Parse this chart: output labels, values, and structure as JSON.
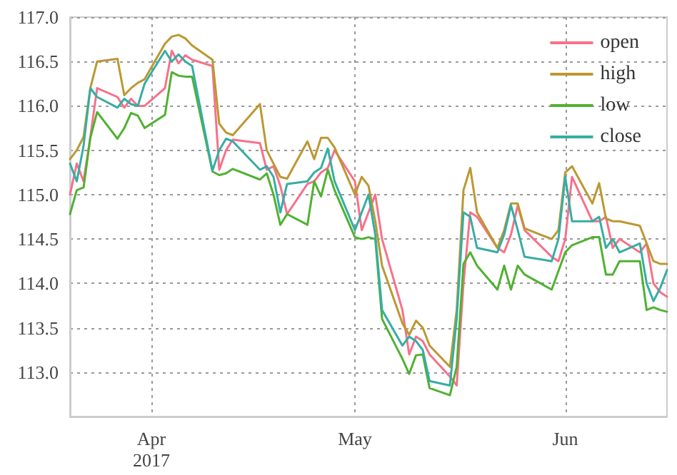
{
  "chart_data": {
    "type": "line",
    "x": [
      "2017-03-20",
      "2017-03-21",
      "2017-03-22",
      "2017-03-23",
      "2017-03-24",
      "2017-03-27",
      "2017-03-28",
      "2017-03-29",
      "2017-03-30",
      "2017-03-31",
      "2017-04-03",
      "2017-04-04",
      "2017-04-05",
      "2017-04-06",
      "2017-04-07",
      "2017-04-10",
      "2017-04-11",
      "2017-04-12",
      "2017-04-13",
      "2017-04-17",
      "2017-04-18",
      "2017-04-19",
      "2017-04-20",
      "2017-04-21",
      "2017-04-24",
      "2017-04-25",
      "2017-04-26",
      "2017-04-27",
      "2017-04-28",
      "2017-05-01",
      "2017-05-02",
      "2017-05-03",
      "2017-05-04",
      "2017-05-05",
      "2017-05-08",
      "2017-05-09",
      "2017-05-10",
      "2017-05-11",
      "2017-05-12",
      "2017-05-15",
      "2017-05-16",
      "2017-05-17",
      "2017-05-18",
      "2017-05-19",
      "2017-05-22",
      "2017-05-23",
      "2017-05-24",
      "2017-05-25",
      "2017-05-26",
      "2017-05-30",
      "2017-05-31",
      "2017-06-01",
      "2017-06-02",
      "2017-06-05",
      "2017-06-06",
      "2017-06-07",
      "2017-06-08",
      "2017-06-09",
      "2017-06-12",
      "2017-06-13",
      "2017-06-14",
      "2017-06-15",
      "2017-06-16"
    ],
    "series": [
      {
        "name": "open",
        "color": "#f77189",
        "values": [
          115.0,
          115.35,
          115.15,
          115.65,
          116.2,
          116.1,
          115.98,
          116.08,
          116.0,
          116.0,
          116.2,
          116.62,
          116.48,
          116.57,
          116.52,
          116.45,
          115.28,
          115.5,
          115.62,
          115.58,
          115.28,
          115.32,
          115.1,
          114.78,
          115.12,
          115.15,
          115.25,
          115.3,
          115.5,
          115.15,
          114.6,
          114.8,
          115.0,
          114.5,
          113.7,
          113.2,
          113.4,
          113.35,
          113.2,
          112.95,
          112.85,
          114.0,
          114.8,
          114.75,
          114.4,
          114.35,
          114.55,
          114.88,
          114.6,
          114.3,
          114.25,
          114.5,
          115.2,
          114.7,
          114.7,
          114.75,
          114.4,
          114.5,
          114.35,
          114.45,
          114.0,
          113.9,
          113.85
        ]
      },
      {
        "name": "high",
        "color": "#bb9832",
        "values": [
          115.4,
          115.5,
          115.65,
          116.2,
          116.5,
          116.53,
          116.12,
          116.2,
          116.26,
          116.3,
          116.7,
          116.78,
          116.8,
          116.76,
          116.68,
          116.52,
          115.8,
          115.7,
          115.67,
          116.02,
          115.5,
          115.35,
          115.2,
          115.18,
          115.6,
          115.4,
          115.64,
          115.64,
          115.53,
          115.0,
          115.2,
          115.1,
          114.7,
          114.2,
          113.55,
          113.42,
          113.58,
          113.5,
          113.3,
          113.06,
          113.7,
          115.05,
          115.3,
          114.8,
          114.4,
          114.6,
          114.9,
          114.9,
          114.62,
          114.5,
          114.6,
          115.25,
          115.32,
          114.9,
          115.13,
          114.73,
          114.7,
          114.7,
          114.65,
          114.45,
          114.25,
          114.22,
          114.22
        ]
      },
      {
        "name": "low",
        "color": "#50b131",
        "values": [
          114.78,
          115.05,
          115.08,
          115.64,
          115.93,
          115.63,
          115.75,
          115.92,
          115.89,
          115.75,
          115.9,
          116.38,
          116.34,
          116.33,
          116.33,
          115.26,
          115.22,
          115.24,
          115.29,
          115.17,
          115.24,
          115.0,
          114.66,
          114.78,
          114.66,
          115.15,
          114.98,
          115.28,
          115.05,
          114.52,
          114.5,
          114.52,
          114.5,
          113.6,
          113.15,
          112.98,
          113.19,
          113.2,
          112.82,
          112.74,
          113.06,
          114.22,
          114.35,
          114.2,
          113.93,
          114.2,
          113.93,
          114.2,
          114.1,
          113.93,
          114.14,
          114.35,
          114.43,
          114.52,
          114.52,
          114.1,
          114.1,
          114.25,
          114.25,
          113.7,
          113.73,
          113.7,
          113.68
        ]
      },
      {
        "name": "close",
        "color": "#36ada4",
        "values": [
          115.35,
          115.15,
          115.55,
          116.2,
          116.1,
          115.98,
          116.08,
          116.02,
          116.0,
          116.25,
          116.62,
          116.5,
          116.58,
          116.5,
          116.45,
          115.27,
          115.5,
          115.63,
          115.6,
          115.28,
          115.32,
          115.2,
          114.8,
          115.12,
          115.15,
          115.25,
          115.3,
          115.52,
          115.15,
          114.6,
          114.8,
          115.0,
          114.55,
          113.7,
          113.3,
          113.4,
          113.35,
          113.25,
          112.9,
          112.85,
          113.6,
          114.8,
          114.75,
          114.4,
          114.35,
          114.55,
          114.88,
          114.6,
          114.3,
          114.25,
          114.5,
          115.2,
          114.7,
          114.7,
          114.75,
          114.4,
          114.5,
          114.35,
          114.45,
          114.0,
          113.8,
          113.95,
          114.15
        ]
      }
    ],
    "xlim": [
      "2017-03-20",
      "2017-06-16"
    ],
    "xticks": [
      {
        "value": "2017-04-01",
        "label": "Apr\n2017"
      },
      {
        "value": "2017-05-01",
        "label": "May"
      },
      {
        "value": "2017-06-01",
        "label": "Jun"
      }
    ],
    "ylim": [
      112.5,
      117.0
    ],
    "yticks": [
      {
        "value": 113,
        "label": "113.0"
      },
      {
        "value": 113.5,
        "label": "113.5"
      },
      {
        "value": 114,
        "label": "114.0"
      },
      {
        "value": 114.5,
        "label": "114.5"
      },
      {
        "value": 115,
        "label": "115.0"
      },
      {
        "value": 115.5,
        "label": "115.5"
      },
      {
        "value": 116,
        "label": "116.0"
      },
      {
        "value": 116.5,
        "label": "116.5"
      },
      {
        "value": 117,
        "label": "117.0"
      }
    ],
    "grid": true,
    "legend": "top right",
    "marker": "none",
    "line_style": "solid"
  }
}
